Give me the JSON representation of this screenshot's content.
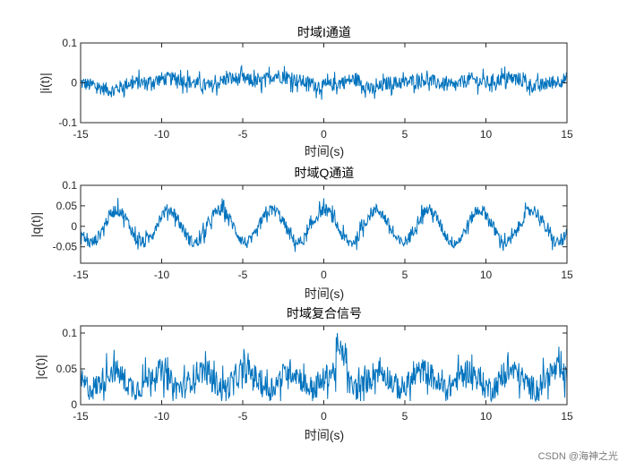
{
  "colors": {
    "series": "#0072BD",
    "axis": "#262626",
    "background": "#ffffff"
  },
  "watermark": "CSDN @海神之光",
  "chart_data": [
    {
      "type": "line",
      "title": "时域I通道",
      "xlabel": "时间(s)",
      "ylabel": "|i(t)|",
      "xlim": [
        -15,
        15
      ],
      "ylim": [
        -0.1,
        0.1
      ],
      "xticks": [
        -15,
        -10,
        -5,
        0,
        5,
        10,
        15
      ],
      "yticks": [
        -0.1,
        0,
        0.1
      ],
      "xtick_labels": [
        "-15",
        "-10",
        "-5",
        "0",
        "5",
        "10",
        "15"
      ],
      "ytick_labels": [
        "-0.1",
        "0",
        "0.1"
      ],
      "grid": false,
      "series": [
        {
          "center": [
            0.0,
            -0.01,
            -0.02,
            0.0,
            0.0,
            0.01,
            0.01,
            0.0,
            -0.01,
            0.01,
            0.01,
            0.0,
            0.02,
            0.01,
            0.0,
            -0.01,
            0.0,
            0.01,
            -0.02,
            0.0,
            0.0,
            0.01,
            0.0,
            -0.01,
            0.01,
            0.0,
            0.01,
            0.01,
            -0.01,
            0.0,
            0.01
          ],
          "spread": 0.035
        }
      ]
    },
    {
      "type": "line",
      "title": "时域Q通道",
      "xlabel": "时间(s)",
      "ylabel": "|q(t)|",
      "xlim": [
        -15,
        15
      ],
      "ylim": [
        -0.09,
        0.1
      ],
      "xticks": [
        -15,
        -10,
        -5,
        0,
        5,
        10,
        15
      ],
      "yticks": [
        -0.05,
        0,
        0.05,
        0.1
      ],
      "xtick_labels": [
        "-15",
        "-10",
        "-5",
        "0",
        "5",
        "10",
        "15"
      ],
      "ytick_labels": [
        "-0.05",
        "0",
        "0.05",
        "0.1"
      ],
      "grid": false,
      "series": [
        {
          "mean": 0.0,
          "amplitude": 0.04,
          "period": 3.2,
          "phase": 1.5,
          "spread": 0.03
        }
      ]
    },
    {
      "type": "line",
      "title": "时域复合信号",
      "xlabel": "时间(s)",
      "ylabel": "|c(t)|",
      "xlim": [
        -15,
        15
      ],
      "ylim": [
        0,
        0.11
      ],
      "xticks": [
        -15,
        -10,
        -5,
        0,
        5,
        10,
        15
      ],
      "yticks": [
        0,
        0.05,
        0.1
      ],
      "xtick_labels": [
        "-15",
        "-10",
        "-5",
        "0",
        "5",
        "10",
        "15"
      ],
      "ytick_labels": [
        "0",
        "0.05",
        "0.1"
      ],
      "grid": false,
      "series": [
        {
          "mean": 0.035,
          "spread": 0.035,
          "min": 0.005,
          "max": 0.1
        }
      ]
    }
  ]
}
